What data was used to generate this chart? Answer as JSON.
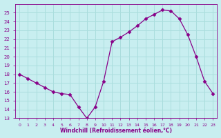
{
  "x": [
    0,
    1,
    2,
    3,
    4,
    5,
    6,
    7,
    8,
    9,
    10,
    11,
    12,
    13,
    14,
    15,
    16,
    17,
    18,
    19,
    20,
    21,
    22,
    23
  ],
  "y": [
    18.0,
    17.5,
    17.0,
    16.5,
    16.0,
    15.8,
    15.7,
    14.3,
    13.0,
    14.3,
    17.2,
    21.7,
    22.2,
    22.8,
    23.5,
    24.3,
    24.8,
    25.3,
    25.2,
    24.3,
    22.5,
    20.0,
    17.2,
    15.8
  ],
  "line_color": "#880088",
  "marker": "D",
  "marker_size": 2.5,
  "bg_color": "#c8eef0",
  "grid_color": "#aadddd",
  "xlabel": "Windchill (Refroidissement éolien,°C)",
  "xlabel_color": "#880088",
  "tick_color": "#880088",
  "ylim": [
    13,
    26
  ],
  "xlim": [
    -0.5,
    23.5
  ],
  "yticks": [
    13,
    14,
    15,
    16,
    17,
    18,
    19,
    20,
    21,
    22,
    23,
    24,
    25
  ],
  "xticks": [
    0,
    1,
    2,
    3,
    4,
    5,
    6,
    7,
    8,
    9,
    10,
    11,
    12,
    13,
    14,
    15,
    16,
    17,
    18,
    19,
    20,
    21,
    22,
    23
  ]
}
